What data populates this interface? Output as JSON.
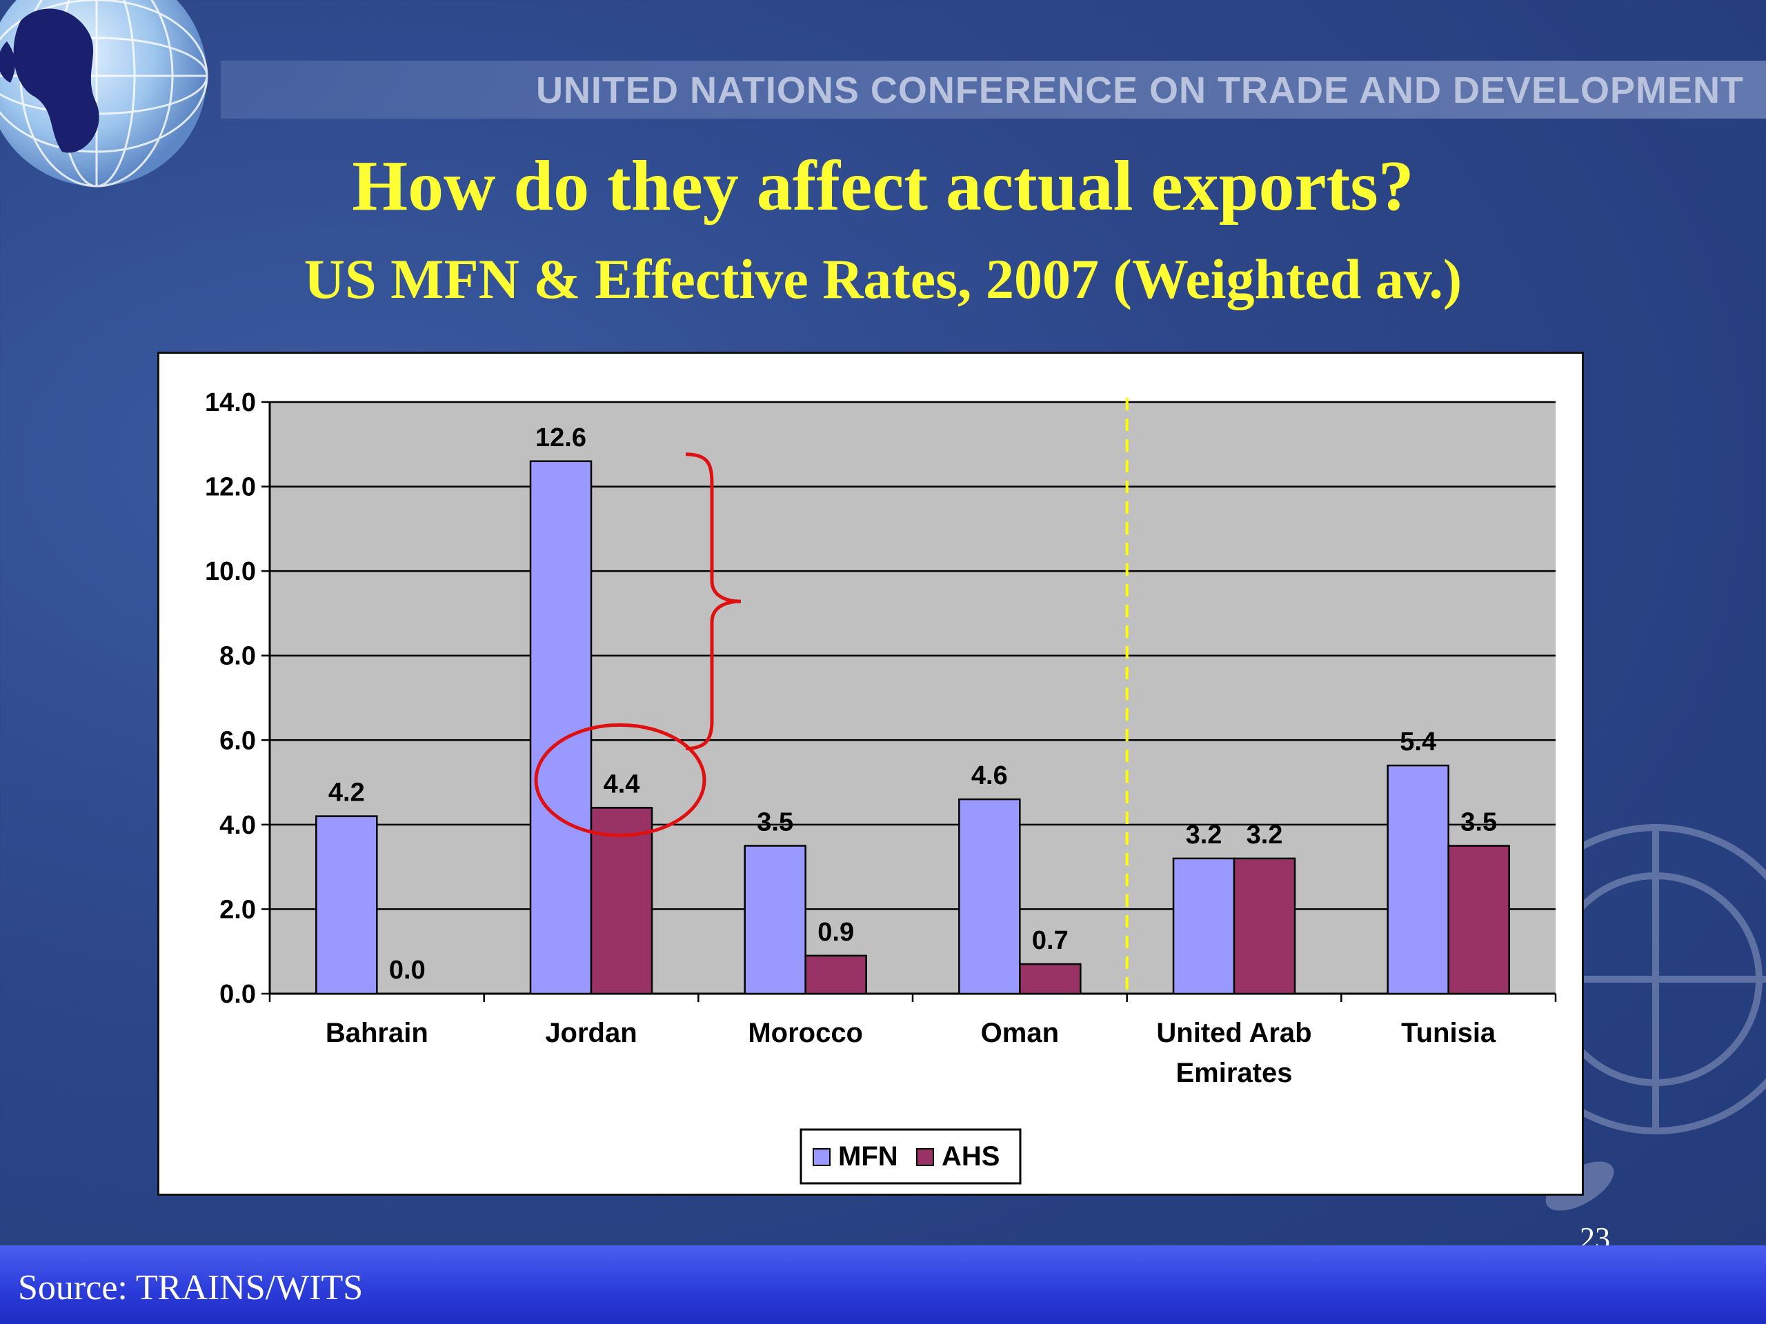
{
  "header": {
    "banner": "UNITED NATIONS CONFERENCE ON TRADE AND DEVELOPMENT",
    "title": "How do they affect actual exports?",
    "subtitle": "US MFN & Effective Rates, 2007 (Weighted av.)"
  },
  "footer": {
    "source": "Source: TRAINS/WITS",
    "page_number": "23"
  },
  "colors": {
    "mfn": "#9999ff",
    "ahs": "#993366",
    "plot_bg": "#c0c0c0",
    "annotation": "#e01010",
    "divider": "#ffff00",
    "title": "#ffff33"
  },
  "chart_data": {
    "type": "bar",
    "categories": [
      "Bahrain",
      "Jordan",
      "Morocco",
      "Oman",
      "United Arab Emirates",
      "Tunisia"
    ],
    "category_lines": [
      [
        "Bahrain"
      ],
      [
        "Jordan"
      ],
      [
        "Morocco"
      ],
      [
        "Oman"
      ],
      [
        "United Arab",
        "Emirates"
      ],
      [
        "Tunisia"
      ]
    ],
    "series": [
      {
        "name": "MFN",
        "values": [
          4.2,
          12.6,
          3.5,
          4.6,
          3.2,
          5.4
        ],
        "labels": [
          "4.2",
          "12.6",
          "3.5",
          "4.6",
          "3.2",
          "5.4"
        ]
      },
      {
        "name": "AHS",
        "values": [
          0.0,
          4.4,
          0.9,
          0.7,
          3.2,
          3.5
        ],
        "labels": [
          "0.0",
          "4.4",
          "0.9",
          "0.7",
          "3.2",
          "3.5"
        ]
      }
    ],
    "ylim": [
      0,
      14
    ],
    "yticks": [
      "0.0",
      "2.0",
      "4.0",
      "6.0",
      "8.0",
      "10.0",
      "12.0",
      "14.0"
    ],
    "grid": true,
    "legend": "bottom-center",
    "annotations": [
      "brace spanning Jordan MFN to AHS gap",
      "circle around Jordan AHS 4.4",
      "dashed vertical divider between Oman and United Arab Emirates"
    ]
  }
}
